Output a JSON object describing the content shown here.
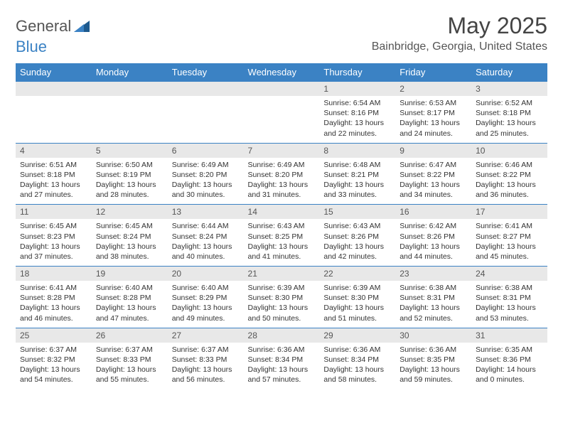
{
  "logo": {
    "text1": "General",
    "text2": "Blue"
  },
  "title": "May 2025",
  "location": "Bainbridge, Georgia, United States",
  "colors": {
    "header_bg": "#3b82c4",
    "header_text": "#ffffff",
    "daynum_bg": "#e8e8e8",
    "border": "#3b82c4",
    "body_text": "#333333"
  },
  "typography": {
    "title_fontsize": 32,
    "location_fontsize": 16,
    "dayhead_fontsize": 13,
    "daynum_fontsize": 12,
    "content_fontsize": 10.5
  },
  "day_headers": [
    "Sunday",
    "Monday",
    "Tuesday",
    "Wednesday",
    "Thursday",
    "Friday",
    "Saturday"
  ],
  "weeks": [
    [
      null,
      null,
      null,
      null,
      {
        "n": "1",
        "sr": "6:54 AM",
        "ss": "8:16 PM",
        "dl": "13 hours and 22 minutes."
      },
      {
        "n": "2",
        "sr": "6:53 AM",
        "ss": "8:17 PM",
        "dl": "13 hours and 24 minutes."
      },
      {
        "n": "3",
        "sr": "6:52 AM",
        "ss": "8:18 PM",
        "dl": "13 hours and 25 minutes."
      }
    ],
    [
      {
        "n": "4",
        "sr": "6:51 AM",
        "ss": "8:18 PM",
        "dl": "13 hours and 27 minutes."
      },
      {
        "n": "5",
        "sr": "6:50 AM",
        "ss": "8:19 PM",
        "dl": "13 hours and 28 minutes."
      },
      {
        "n": "6",
        "sr": "6:49 AM",
        "ss": "8:20 PM",
        "dl": "13 hours and 30 minutes."
      },
      {
        "n": "7",
        "sr": "6:49 AM",
        "ss": "8:20 PM",
        "dl": "13 hours and 31 minutes."
      },
      {
        "n": "8",
        "sr": "6:48 AM",
        "ss": "8:21 PM",
        "dl": "13 hours and 33 minutes."
      },
      {
        "n": "9",
        "sr": "6:47 AM",
        "ss": "8:22 PM",
        "dl": "13 hours and 34 minutes."
      },
      {
        "n": "10",
        "sr": "6:46 AM",
        "ss": "8:22 PM",
        "dl": "13 hours and 36 minutes."
      }
    ],
    [
      {
        "n": "11",
        "sr": "6:45 AM",
        "ss": "8:23 PM",
        "dl": "13 hours and 37 minutes."
      },
      {
        "n": "12",
        "sr": "6:45 AM",
        "ss": "8:24 PM",
        "dl": "13 hours and 38 minutes."
      },
      {
        "n": "13",
        "sr": "6:44 AM",
        "ss": "8:24 PM",
        "dl": "13 hours and 40 minutes."
      },
      {
        "n": "14",
        "sr": "6:43 AM",
        "ss": "8:25 PM",
        "dl": "13 hours and 41 minutes."
      },
      {
        "n": "15",
        "sr": "6:43 AM",
        "ss": "8:26 PM",
        "dl": "13 hours and 42 minutes."
      },
      {
        "n": "16",
        "sr": "6:42 AM",
        "ss": "8:26 PM",
        "dl": "13 hours and 44 minutes."
      },
      {
        "n": "17",
        "sr": "6:41 AM",
        "ss": "8:27 PM",
        "dl": "13 hours and 45 minutes."
      }
    ],
    [
      {
        "n": "18",
        "sr": "6:41 AM",
        "ss": "8:28 PM",
        "dl": "13 hours and 46 minutes."
      },
      {
        "n": "19",
        "sr": "6:40 AM",
        "ss": "8:28 PM",
        "dl": "13 hours and 47 minutes."
      },
      {
        "n": "20",
        "sr": "6:40 AM",
        "ss": "8:29 PM",
        "dl": "13 hours and 49 minutes."
      },
      {
        "n": "21",
        "sr": "6:39 AM",
        "ss": "8:30 PM",
        "dl": "13 hours and 50 minutes."
      },
      {
        "n": "22",
        "sr": "6:39 AM",
        "ss": "8:30 PM",
        "dl": "13 hours and 51 minutes."
      },
      {
        "n": "23",
        "sr": "6:38 AM",
        "ss": "8:31 PM",
        "dl": "13 hours and 52 minutes."
      },
      {
        "n": "24",
        "sr": "6:38 AM",
        "ss": "8:31 PM",
        "dl": "13 hours and 53 minutes."
      }
    ],
    [
      {
        "n": "25",
        "sr": "6:37 AM",
        "ss": "8:32 PM",
        "dl": "13 hours and 54 minutes."
      },
      {
        "n": "26",
        "sr": "6:37 AM",
        "ss": "8:33 PM",
        "dl": "13 hours and 55 minutes."
      },
      {
        "n": "27",
        "sr": "6:37 AM",
        "ss": "8:33 PM",
        "dl": "13 hours and 56 minutes."
      },
      {
        "n": "28",
        "sr": "6:36 AM",
        "ss": "8:34 PM",
        "dl": "13 hours and 57 minutes."
      },
      {
        "n": "29",
        "sr": "6:36 AM",
        "ss": "8:34 PM",
        "dl": "13 hours and 58 minutes."
      },
      {
        "n": "30",
        "sr": "6:36 AM",
        "ss": "8:35 PM",
        "dl": "13 hours and 59 minutes."
      },
      {
        "n": "31",
        "sr": "6:35 AM",
        "ss": "8:36 PM",
        "dl": "14 hours and 0 minutes."
      }
    ]
  ],
  "labels": {
    "sunrise": "Sunrise:",
    "sunset": "Sunset:",
    "daylight": "Daylight:"
  }
}
